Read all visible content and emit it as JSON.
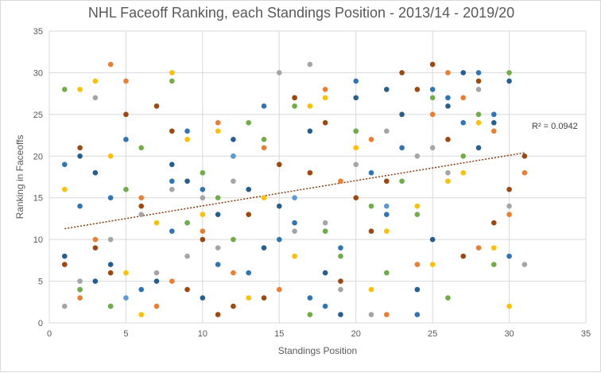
{
  "chart_data": {
    "type": "scatter",
    "title": "NHL Faceoff Ranking, each Standings Position - 2013/14 - 2019/20",
    "xlabel": "Standings Position",
    "ylabel": "Ranking in Faceoffs",
    "xlim": [
      0,
      35
    ],
    "ylim": [
      0,
      35
    ],
    "xticks": [
      0,
      5,
      10,
      15,
      20,
      25,
      30,
      35
    ],
    "yticks": [
      0,
      5,
      10,
      15,
      20,
      25,
      30,
      35
    ],
    "grid": true,
    "trendline": {
      "type": "linear",
      "from": [
        1,
        11.3
      ],
      "to": [
        31,
        20.4
      ],
      "color": "#843c0c",
      "r2_label": "R² = 0.0942"
    },
    "series": [
      {
        "color": "#2e75b6",
        "points": [
          [
            1,
            19
          ],
          [
            2,
            14
          ],
          [
            4,
            15
          ],
          [
            5,
            22
          ],
          [
            6,
            4
          ],
          [
            8,
            11
          ],
          [
            8,
            17
          ],
          [
            9,
            23
          ],
          [
            10,
            16
          ],
          [
            11,
            7
          ],
          [
            12,
            20
          ],
          [
            13,
            6
          ],
          [
            14,
            26
          ],
          [
            15,
            10
          ],
          [
            16,
            12
          ],
          [
            17,
            3
          ],
          [
            18,
            2
          ],
          [
            19,
            9
          ],
          [
            20,
            29
          ],
          [
            21,
            18
          ],
          [
            22,
            13
          ],
          [
            23,
            21
          ],
          [
            24,
            1
          ],
          [
            25,
            28
          ],
          [
            26,
            27
          ],
          [
            27,
            24
          ],
          [
            28,
            30
          ],
          [
            29,
            25
          ],
          [
            30,
            8
          ]
        ]
      },
      {
        "color": "#ed7d31",
        "points": [
          [
            2,
            3
          ],
          [
            3,
            10
          ],
          [
            4,
            31
          ],
          [
            5,
            29
          ],
          [
            6,
            15
          ],
          [
            7,
            2
          ],
          [
            8,
            5
          ],
          [
            10,
            11
          ],
          [
            11,
            24
          ],
          [
            12,
            6
          ],
          [
            14,
            21
          ],
          [
            15,
            4
          ],
          [
            16,
            27
          ],
          [
            18,
            28
          ],
          [
            19,
            17
          ],
          [
            21,
            22
          ],
          [
            22,
            1
          ],
          [
            24,
            7
          ],
          [
            25,
            25
          ],
          [
            26,
            30
          ],
          [
            27,
            27
          ],
          [
            28,
            9
          ],
          [
            29,
            23
          ],
          [
            30,
            13
          ],
          [
            31,
            18
          ]
        ]
      },
      {
        "color": "#a5a5a5",
        "points": [
          [
            1,
            2
          ],
          [
            2,
            5
          ],
          [
            3,
            27
          ],
          [
            4,
            10
          ],
          [
            6,
            13
          ],
          [
            7,
            6
          ],
          [
            8,
            16
          ],
          [
            9,
            8
          ],
          [
            10,
            15
          ],
          [
            11,
            9
          ],
          [
            12,
            17
          ],
          [
            15,
            30
          ],
          [
            16,
            11
          ],
          [
            17,
            31
          ],
          [
            18,
            12
          ],
          [
            19,
            4
          ],
          [
            20,
            19
          ],
          [
            21,
            1
          ],
          [
            22,
            23
          ],
          [
            24,
            20
          ],
          [
            25,
            21
          ],
          [
            26,
            18
          ],
          [
            28,
            28
          ],
          [
            30,
            14
          ],
          [
            31,
            7
          ]
        ]
      },
      {
        "color": "#ffc000",
        "points": [
          [
            1,
            16
          ],
          [
            2,
            28
          ],
          [
            3,
            29
          ],
          [
            4,
            20
          ],
          [
            5,
            6
          ],
          [
            6,
            1
          ],
          [
            7,
            12
          ],
          [
            8,
            30
          ],
          [
            9,
            22
          ],
          [
            10,
            13
          ],
          [
            11,
            23
          ],
          [
            13,
            3
          ],
          [
            14,
            15
          ],
          [
            16,
            8
          ],
          [
            17,
            26
          ],
          [
            18,
            27
          ],
          [
            20,
            21
          ],
          [
            21,
            4
          ],
          [
            22,
            11
          ],
          [
            24,
            14
          ],
          [
            25,
            7
          ],
          [
            26,
            17
          ],
          [
            27,
            18
          ],
          [
            28,
            24
          ],
          [
            29,
            9
          ],
          [
            30,
            2
          ]
        ]
      },
      {
        "color": "#5b9bd5",
        "points": [
          [
            2,
            4
          ],
          [
            4,
            2
          ],
          [
            5,
            3
          ],
          [
            9,
            12
          ],
          [
            12,
            20
          ],
          [
            16,
            15
          ],
          [
            18,
            11
          ],
          [
            20,
            23
          ],
          [
            22,
            14
          ]
        ]
      },
      {
        "color": "#70ad47",
        "points": [
          [
            1,
            28
          ],
          [
            2,
            4
          ],
          [
            4,
            2
          ],
          [
            5,
            16
          ],
          [
            6,
            21
          ],
          [
            8,
            29
          ],
          [
            9,
            12
          ],
          [
            10,
            18
          ],
          [
            11,
            15
          ],
          [
            12,
            10
          ],
          [
            13,
            24
          ],
          [
            14,
            22
          ],
          [
            16,
            26
          ],
          [
            17,
            1
          ],
          [
            18,
            11
          ],
          [
            19,
            8
          ],
          [
            20,
            23
          ],
          [
            21,
            14
          ],
          [
            22,
            6
          ],
          [
            23,
            17
          ],
          [
            24,
            13
          ],
          [
            25,
            27
          ],
          [
            26,
            3
          ],
          [
            27,
            20
          ],
          [
            28,
            25
          ],
          [
            29,
            7
          ],
          [
            30,
            30
          ]
        ]
      },
      {
        "color": "#255e91",
        "points": [
          [
            1,
            8
          ],
          [
            2,
            20
          ],
          [
            3,
            18
          ],
          [
            3,
            5
          ],
          [
            4,
            7
          ],
          [
            7,
            5
          ],
          [
            8,
            19
          ],
          [
            9,
            17
          ],
          [
            10,
            3
          ],
          [
            11,
            13
          ],
          [
            12,
            22
          ],
          [
            13,
            16
          ],
          [
            14,
            9
          ],
          [
            15,
            14
          ],
          [
            17,
            23
          ],
          [
            18,
            6
          ],
          [
            19,
            1
          ],
          [
            20,
            27
          ],
          [
            22,
            28
          ],
          [
            23,
            25
          ],
          [
            24,
            4
          ],
          [
            25,
            10
          ],
          [
            26,
            26
          ],
          [
            27,
            30
          ],
          [
            28,
            21
          ],
          [
            29,
            24
          ],
          [
            30,
            29
          ]
        ]
      },
      {
        "color": "#9e480e",
        "points": [
          [
            1,
            7
          ],
          [
            2,
            21
          ],
          [
            3,
            9
          ],
          [
            4,
            6
          ],
          [
            5,
            25
          ],
          [
            6,
            14
          ],
          [
            7,
            26
          ],
          [
            8,
            23
          ],
          [
            9,
            4
          ],
          [
            10,
            10
          ],
          [
            11,
            1
          ],
          [
            12,
            2
          ],
          [
            13,
            13
          ],
          [
            14,
            3
          ],
          [
            15,
            19
          ],
          [
            16,
            27
          ],
          [
            17,
            18
          ],
          [
            18,
            24
          ],
          [
            19,
            5
          ],
          [
            20,
            15
          ],
          [
            21,
            11
          ],
          [
            22,
            17
          ],
          [
            23,
            30
          ],
          [
            24,
            28
          ],
          [
            25,
            31
          ],
          [
            26,
            22
          ],
          [
            27,
            8
          ],
          [
            28,
            29
          ],
          [
            29,
            12
          ],
          [
            30,
            16
          ],
          [
            31,
            20
          ]
        ]
      }
    ]
  }
}
